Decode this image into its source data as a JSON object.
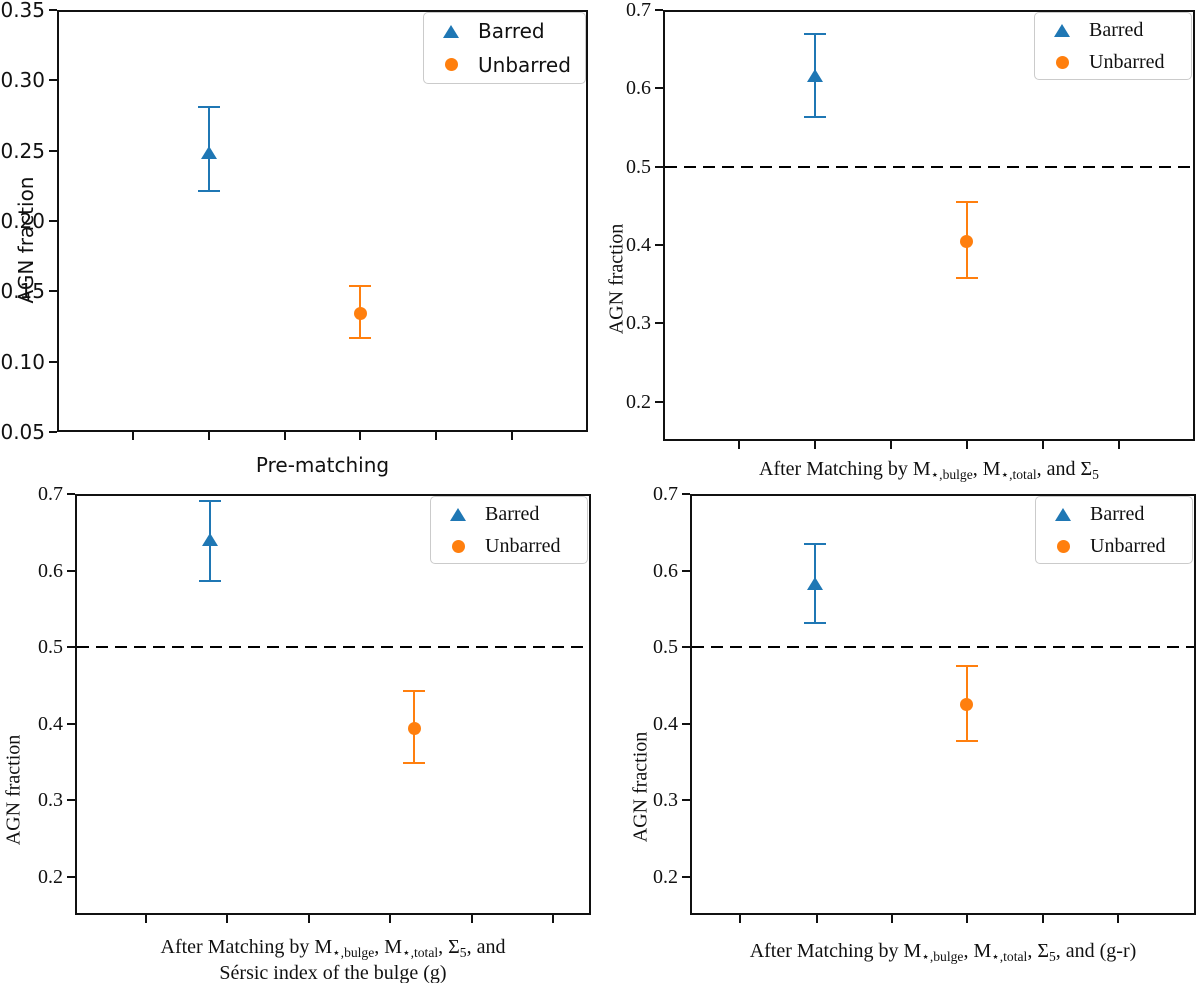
{
  "figure": {
    "background": "#ffffff",
    "text_color": "#111111",
    "axis_color": "#111111",
    "legend_border_color": "#cbcbcb"
  },
  "legend": {
    "items": [
      {
        "label": "Barred",
        "marker": "triangle",
        "color": "#1f77b4"
      },
      {
        "label": "Unbarred",
        "marker": "circle",
        "color": "#ff7f0e"
      }
    ]
  },
  "chart_data": [
    {
      "id": "pre-matching",
      "type": "scatter",
      "ylabel": "AGN fraction",
      "xlabel_lines": [
        "Pre-matching"
      ],
      "ylim": [
        0.05,
        0.35
      ],
      "yticks": [
        {
          "value": 0.05,
          "label": "0.05"
        },
        {
          "value": 0.1,
          "label": "0.10"
        },
        {
          "value": 0.15,
          "label": "0.15"
        },
        {
          "value": 0.2,
          "label": "0.20"
        },
        {
          "value": 0.25,
          "label": "0.25"
        },
        {
          "value": 0.3,
          "label": "0.30"
        },
        {
          "value": 0.35,
          "label": "0.35"
        }
      ],
      "reference_line_y": null,
      "legend_position": "upper right",
      "grid": false,
      "series": [
        {
          "name": "Barred",
          "marker": "triangle",
          "color": "#1f77b4",
          "x_frac": 0.2857,
          "y": 0.249,
          "y_err_low": 0.221,
          "y_err_high": 0.281
        },
        {
          "name": "Unbarred",
          "marker": "circle",
          "color": "#ff7f0e",
          "x_frac": 0.5714,
          "y": 0.134,
          "y_err_low": 0.117,
          "y_err_high": 0.154
        }
      ]
    },
    {
      "id": "matched-mass-sigma",
      "type": "scatter",
      "ylabel": "AGN fraction",
      "xlabel_lines": [
        "After Matching by M_{⋆,bulge}, M_{⋆,total}, and Σ_{5}"
      ],
      "ylim": [
        0.15,
        0.7
      ],
      "yticks": [
        {
          "value": 0.2,
          "label": "0.2"
        },
        {
          "value": 0.3,
          "label": "0.3"
        },
        {
          "value": 0.4,
          "label": "0.4"
        },
        {
          "value": 0.5,
          "label": "0.5"
        },
        {
          "value": 0.6,
          "label": "0.6"
        },
        {
          "value": 0.7,
          "label": "0.7"
        }
      ],
      "reference_line_y": 0.5,
      "legend_position": "upper right",
      "grid": false,
      "series": [
        {
          "name": "Barred",
          "marker": "triangle",
          "color": "#1f77b4",
          "x_frac": 0.2857,
          "y": 0.617,
          "y_err_low": 0.564,
          "y_err_high": 0.67
        },
        {
          "name": "Unbarred",
          "marker": "circle",
          "color": "#ff7f0e",
          "x_frac": 0.5714,
          "y": 0.404,
          "y_err_low": 0.358,
          "y_err_high": 0.455
        }
      ]
    },
    {
      "id": "matched-sersic",
      "type": "scatter",
      "ylabel": "AGN fraction",
      "xlabel_lines": [
        "After Matching by M_{⋆,bulge}, M_{⋆,total}, Σ_{5}, and",
        "Sérsic index of the bulge (g)"
      ],
      "ylim": [
        0.15,
        0.7
      ],
      "yticks": [
        {
          "value": 0.2,
          "label": "0.2"
        },
        {
          "value": 0.3,
          "label": "0.3"
        },
        {
          "value": 0.4,
          "label": "0.4"
        },
        {
          "value": 0.5,
          "label": "0.5"
        },
        {
          "value": 0.6,
          "label": "0.6"
        },
        {
          "value": 0.7,
          "label": "0.7"
        }
      ],
      "reference_line_y": 0.5,
      "legend_position": "upper right",
      "grid": false,
      "series": [
        {
          "name": "Barred",
          "marker": "triangle",
          "color": "#1f77b4",
          "x_frac": 0.262,
          "y": 0.641,
          "y_err_low": 0.586,
          "y_err_high": 0.691
        },
        {
          "name": "Unbarred",
          "marker": "circle",
          "color": "#ff7f0e",
          "x_frac": 0.657,
          "y": 0.393,
          "y_err_low": 0.348,
          "y_err_high": 0.442
        }
      ]
    },
    {
      "id": "matched-gr-color",
      "type": "scatter",
      "ylabel": "AGN fraction",
      "xlabel_lines": [
        "After Matching by M_{⋆,bulge}, M_{⋆,total}, Σ_{5}, and (g-r)"
      ],
      "ylim": [
        0.15,
        0.7
      ],
      "yticks": [
        {
          "value": 0.2,
          "label": "0.2"
        },
        {
          "value": 0.3,
          "label": "0.3"
        },
        {
          "value": 0.4,
          "label": "0.4"
        },
        {
          "value": 0.5,
          "label": "0.5"
        },
        {
          "value": 0.6,
          "label": "0.6"
        },
        {
          "value": 0.7,
          "label": "0.7"
        }
      ],
      "reference_line_y": 0.5,
      "legend_position": "upper right",
      "grid": false,
      "series": [
        {
          "name": "Barred",
          "marker": "triangle",
          "color": "#1f77b4",
          "x_frac": 0.247,
          "y": 0.583,
          "y_err_low": 0.531,
          "y_err_high": 0.635
        },
        {
          "name": "Unbarred",
          "marker": "circle",
          "color": "#ff7f0e",
          "x_frac": 0.547,
          "y": 0.425,
          "y_err_low": 0.377,
          "y_err_high": 0.475
        }
      ]
    }
  ]
}
